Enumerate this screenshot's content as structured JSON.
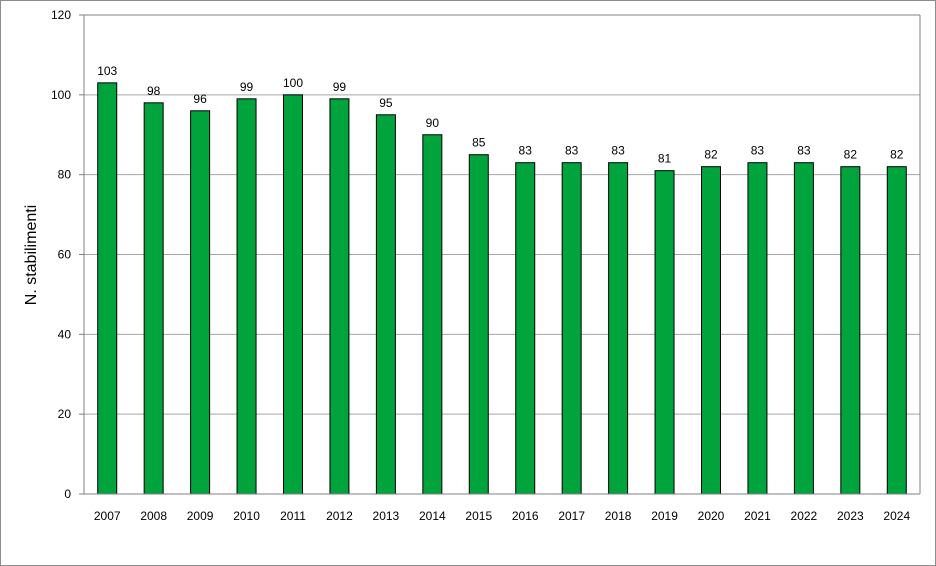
{
  "chart_data": {
    "type": "bar",
    "title": "",
    "xlabel": "",
    "ylabel": "N. stabilimenti",
    "ylim": [
      0,
      120
    ],
    "yticks": [
      0,
      20,
      40,
      60,
      80,
      100,
      120
    ],
    "grid": true,
    "legend": "none",
    "bar_color": "#00a33c",
    "bar_stroke": "#000000",
    "categories": [
      "2007",
      "2008",
      "2009",
      "2010",
      "2011",
      "2012",
      "2013",
      "2014",
      "2015",
      "2016",
      "2017",
      "2018",
      "2019",
      "2020",
      "2021",
      "2022",
      "2023",
      "2024"
    ],
    "values": [
      103,
      98,
      96,
      99,
      100,
      99,
      95,
      90,
      85,
      83,
      83,
      83,
      81,
      82,
      83,
      83,
      82,
      82
    ]
  }
}
